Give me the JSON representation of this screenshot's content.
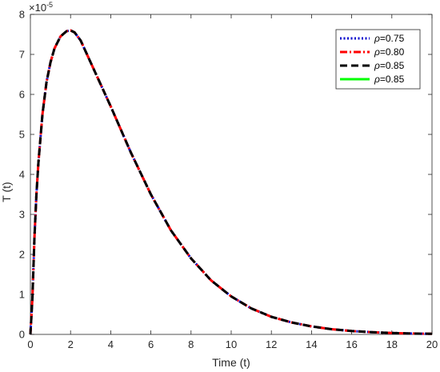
{
  "chart_data": {
    "type": "line",
    "title": "",
    "xlabel": "Time (t)",
    "ylabel": "T (t)",
    "y_multiplier_base": "×10",
    "y_multiplier_exp": "-5",
    "xlim": [
      0,
      20
    ],
    "ylim": [
      0,
      8
    ],
    "x_ticks": [
      0,
      2,
      4,
      6,
      8,
      10,
      12,
      14,
      16,
      18,
      20
    ],
    "y_ticks": [
      0,
      1,
      2,
      3,
      4,
      5,
      6,
      7,
      8
    ],
    "grid": false,
    "legend_position": "top-right",
    "x": [
      0,
      0.1,
      0.2,
      0.3,
      0.4,
      0.6,
      0.8,
      1.0,
      1.2,
      1.5,
      1.8,
      2.0,
      2.2,
      2.5,
      3.0,
      3.5,
      4.0,
      5.0,
      6.0,
      7.0,
      8.0,
      9.0,
      10.0,
      11.0,
      12.0,
      13.0,
      14.0,
      15.0,
      16.0,
      17.0,
      18.0,
      19.0,
      20.0
    ],
    "series": [
      {
        "name": "0.75",
        "color": "#0000cc",
        "style": "dotted",
        "values": [
          0,
          0.9,
          2.4,
          3.5,
          4.3,
          5.5,
          6.3,
          6.8,
          7.15,
          7.45,
          7.58,
          7.6,
          7.55,
          7.35,
          6.8,
          6.25,
          5.7,
          4.55,
          3.5,
          2.6,
          1.9,
          1.35,
          0.95,
          0.65,
          0.44,
          0.3,
          0.2,
          0.13,
          0.085,
          0.055,
          0.035,
          0.022,
          0.014
        ]
      },
      {
        "name": "0.80",
        "color": "#ff0000",
        "style": "dashdot",
        "values": [
          0,
          0.9,
          2.4,
          3.5,
          4.3,
          5.5,
          6.3,
          6.8,
          7.15,
          7.45,
          7.58,
          7.6,
          7.55,
          7.35,
          6.8,
          6.25,
          5.7,
          4.55,
          3.5,
          2.6,
          1.9,
          1.35,
          0.95,
          0.65,
          0.44,
          0.3,
          0.2,
          0.13,
          0.085,
          0.055,
          0.035,
          0.022,
          0.014
        ]
      },
      {
        "name": "0.85",
        "color": "#000000",
        "style": "dashed",
        "values": [
          0,
          0.9,
          2.4,
          3.5,
          4.3,
          5.5,
          6.3,
          6.8,
          7.15,
          7.45,
          7.58,
          7.6,
          7.55,
          7.35,
          6.8,
          6.25,
          5.7,
          4.55,
          3.5,
          2.6,
          1.9,
          1.35,
          0.95,
          0.65,
          0.44,
          0.3,
          0.2,
          0.13,
          0.085,
          0.055,
          0.035,
          0.022,
          0.014
        ]
      },
      {
        "name": "0.85",
        "color": "#00ff00",
        "style": "solid",
        "values": [
          0,
          0.9,
          2.4,
          3.5,
          4.3,
          5.5,
          6.3,
          6.8,
          7.15,
          7.45,
          7.58,
          7.6,
          7.55,
          7.35,
          6.8,
          6.25,
          5.7,
          4.55,
          3.5,
          2.6,
          1.9,
          1.35,
          0.95,
          0.65,
          0.44,
          0.3,
          0.2,
          0.13,
          0.085,
          0.055,
          0.035,
          0.022,
          0.014
        ]
      }
    ],
    "legend": [
      {
        "symbol": "ρ",
        "text": "=0.75"
      },
      {
        "symbol": "ρ",
        "text": "=0.80"
      },
      {
        "symbol": "ρ",
        "text": "=0.85"
      },
      {
        "symbol": "ρ",
        "text": "=0.85"
      }
    ]
  }
}
